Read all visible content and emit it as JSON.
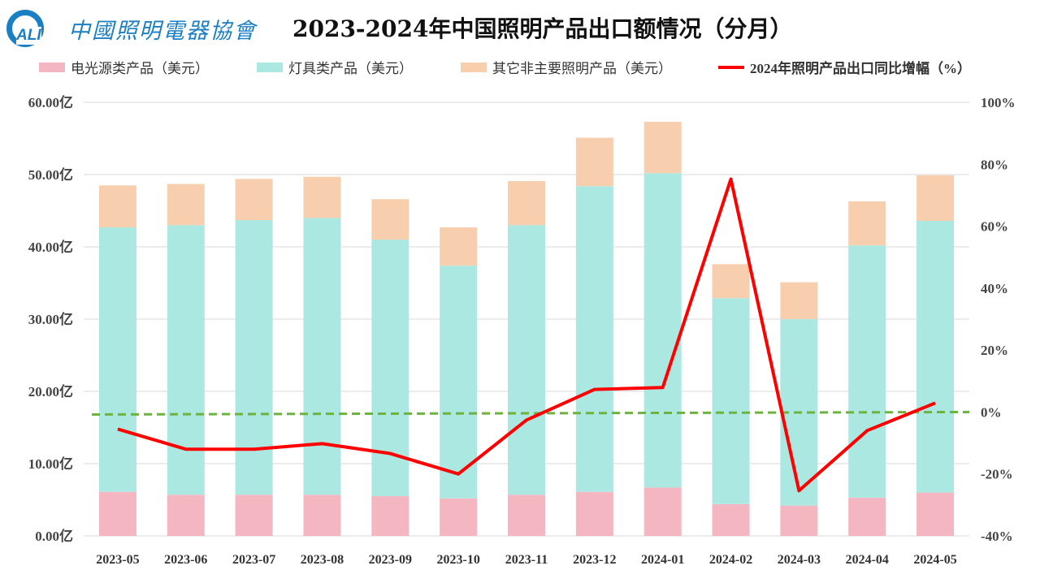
{
  "logo": {
    "mark": "ALI",
    "name": "中國照明電器協會"
  },
  "chart_data": {
    "type": "bar",
    "stacked": true,
    "title": "2023-2024年中国照明产品出口额情况（分月）",
    "categories": [
      "2023-05",
      "2023-06",
      "2023-07",
      "2023-08",
      "2023-09",
      "2023-10",
      "2023-11",
      "2023-12",
      "2024-01",
      "2024-02",
      "2024-03",
      "2024-04",
      "2024-05"
    ],
    "series": [
      {
        "name": "电光源类产品（美元）",
        "color": "#f4b6c0",
        "axis": "left",
        "values": [
          6.1,
          5.7,
          5.7,
          5.7,
          5.5,
          5.2,
          5.7,
          6.1,
          6.7,
          4.4,
          4.2,
          5.3,
          6.0
        ]
      },
      {
        "name": "灯具类产品（美元）",
        "color": "#abe8e2",
        "axis": "left",
        "values": [
          36.6,
          37.3,
          38.0,
          38.3,
          35.5,
          32.2,
          37.3,
          42.3,
          43.5,
          28.5,
          25.8,
          34.9,
          37.6
        ]
      },
      {
        "name": "其它非主要照明产品（美元）",
        "color": "#f8cfae",
        "axis": "left",
        "values": [
          5.8,
          5.7,
          5.7,
          5.7,
          5.6,
          5.3,
          6.1,
          6.7,
          7.1,
          4.7,
          5.1,
          6.1,
          6.3
        ]
      },
      {
        "name": "2024年照明产品出口同比增幅（%）",
        "type": "line",
        "color": "#ff0000",
        "axis": "right",
        "values": [
          -5.5,
          -12,
          -12,
          -10.2,
          -13.4,
          -20,
          -2.6,
          7.3,
          7.9,
          75.2,
          -25.4,
          -6,
          2.9
        ]
      }
    ],
    "trendline": {
      "color": "#6db33f",
      "style": "dashed",
      "axis": "right",
      "start": -0.8,
      "end": 0
    },
    "y_left": {
      "ylim": [
        0,
        60
      ],
      "ticks": [
        "0.00亿",
        "10.00亿",
        "20.00亿",
        "30.00亿",
        "40.00亿",
        "50.00亿",
        "60.00亿"
      ]
    },
    "y_right": {
      "ylim": [
        -40,
        100
      ],
      "ticks": [
        "-40%",
        "-20%",
        "0%",
        "20%",
        "40%",
        "60%",
        "80%",
        "100%"
      ]
    },
    "grid": true,
    "legend": "top"
  }
}
